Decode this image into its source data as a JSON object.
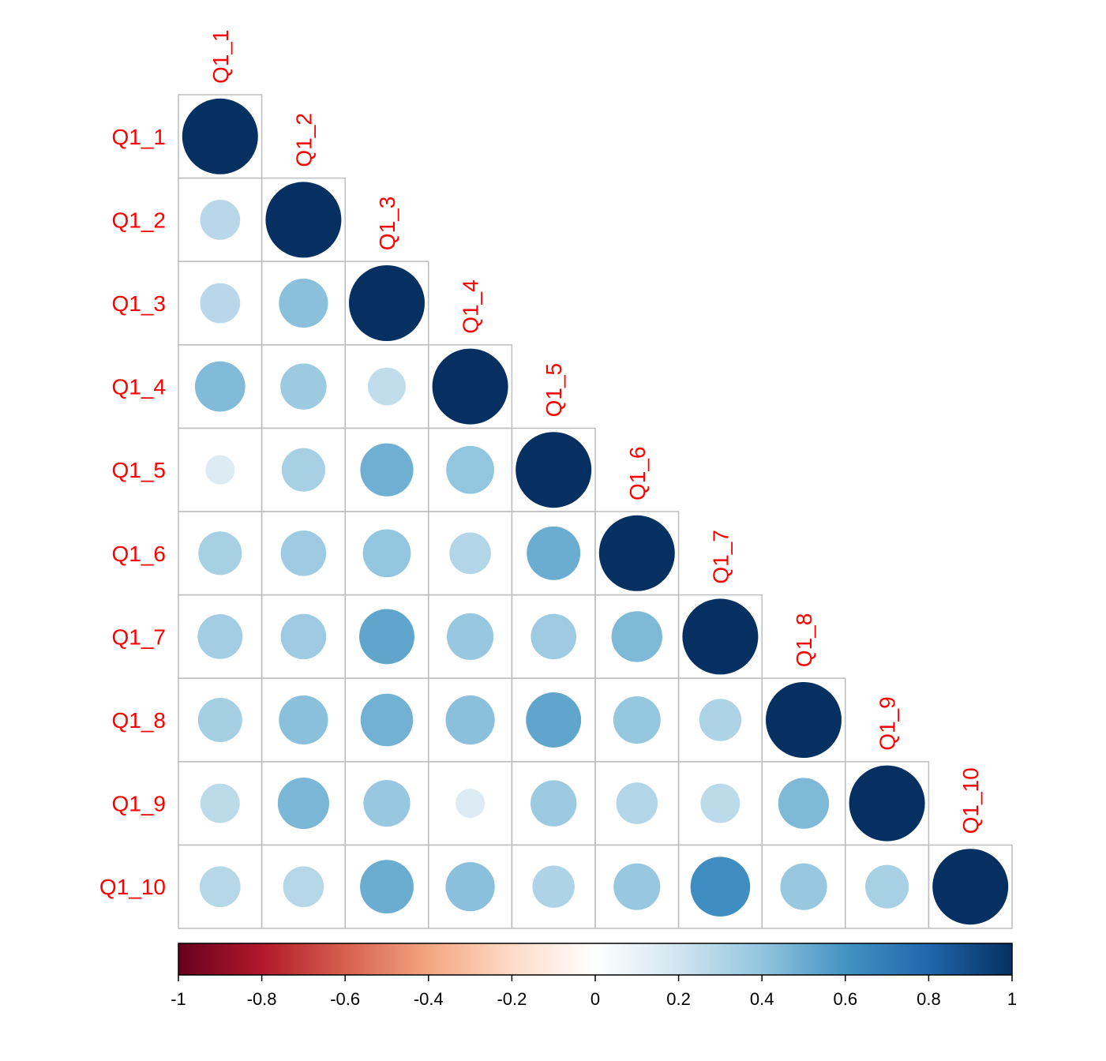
{
  "chart_data": {
    "type": "heatmap",
    "variables": [
      "Q1_1",
      "Q1_2",
      "Q1_3",
      "Q1_4",
      "Q1_5",
      "Q1_6",
      "Q1_7",
      "Q1_8",
      "Q1_9",
      "Q1_10"
    ],
    "matrix": [
      [
        1.0
      ],
      [
        0.28,
        1.0
      ],
      [
        0.28,
        0.42,
        1.0
      ],
      [
        0.44,
        0.37,
        0.25,
        1.0
      ],
      [
        0.15,
        0.33,
        0.49,
        0.4,
        1.0
      ],
      [
        0.33,
        0.36,
        0.4,
        0.3,
        0.5,
        1.0
      ],
      [
        0.35,
        0.36,
        0.53,
        0.38,
        0.36,
        0.45,
        1.0
      ],
      [
        0.34,
        0.42,
        0.48,
        0.42,
        0.53,
        0.39,
        0.31,
        1.0
      ],
      [
        0.27,
        0.46,
        0.38,
        0.15,
        0.37,
        0.3,
        0.27,
        0.45,
        1.0
      ],
      [
        0.29,
        0.29,
        0.5,
        0.42,
        0.31,
        0.38,
        0.62,
        0.38,
        0.33,
        1.0
      ]
    ],
    "triangle": "lower",
    "colorbar": {
      "range": [
        -1,
        1
      ],
      "ticks": [
        "-1",
        "-0.8",
        "-0.6",
        "-0.4",
        "-0.2",
        "0",
        "0.2",
        "0.4",
        "0.6",
        "0.8",
        "1"
      ],
      "placement": "bottom"
    },
    "colors": {
      "label": "#ff0000",
      "grid": "#bebebe",
      "scale": [
        "#67001f",
        "#b2182b",
        "#d6604d",
        "#f4a582",
        "#fddbc7",
        "#ffffff",
        "#d1e5f0",
        "#92c5de",
        "#4393c3",
        "#2166ac",
        "#053061"
      ]
    }
  }
}
